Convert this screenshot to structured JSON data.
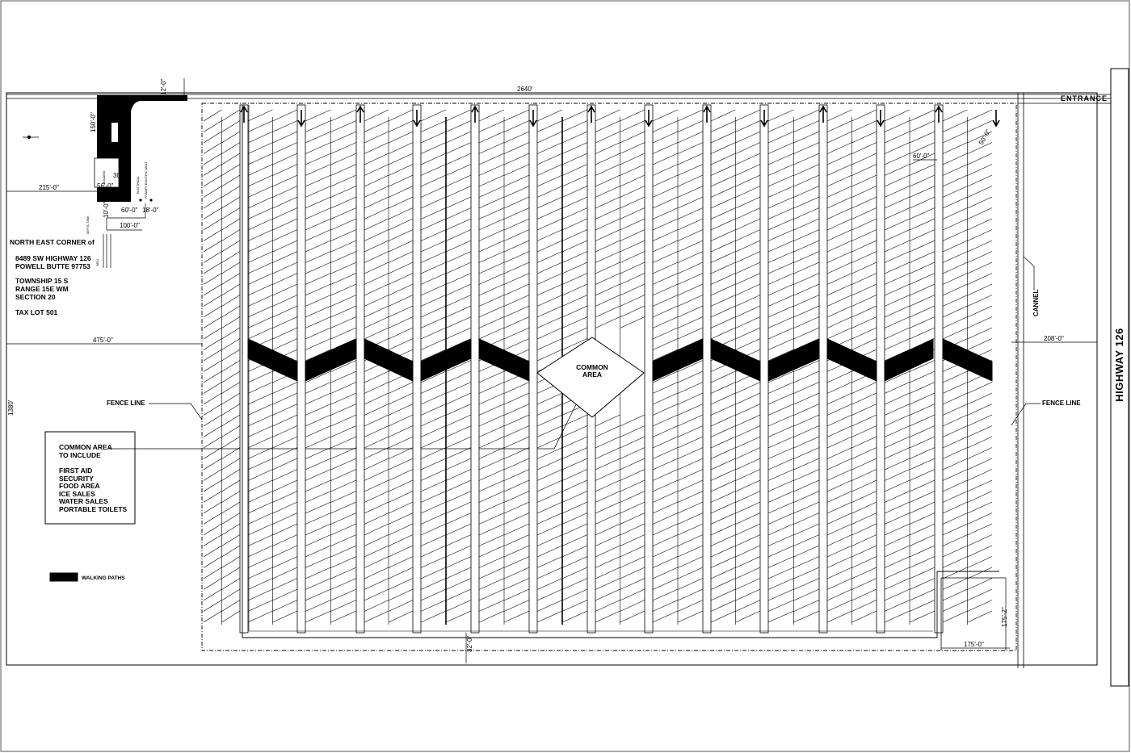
{
  "dimensions": {
    "top_length": "2640'",
    "road_width": "12'-0\"",
    "left_height": "1380'",
    "top_left_width": "215'-0\"",
    "mid_left_width": "475'-0\"",
    "right_width": "208'-0\"",
    "left_vertical": "150'-0\"",
    "building_width": "56'-0\"",
    "dim_30": "30'",
    "dim_60_1": "60'-0\"",
    "dim_18": "18'-0\"",
    "dim_10": "10'-0\"",
    "dim_100": "100'-0\"",
    "bottom_32": "32'-0\"",
    "lot_height": "175'-2\"",
    "lot_width": "175'-0\"",
    "dim_60_2": "60'-0\"",
    "dim_50": "50'-0\""
  },
  "labels": {
    "entrance": "ENTRANCE",
    "highway": "HIGHWAY 126",
    "cannel": "CANNEL",
    "fence_left": "FENCE LINE",
    "fence_right": "FENCE LINE",
    "common_area_1": "COMMON",
    "common_area_2": "AREA",
    "walking_paths": "WALKING PATHS",
    "building_small": "BUILDING",
    "utility_1": "ELECTRICAL",
    "utility_2": "PRIMARY ELECTRIC VAULT",
    "utility_3": "SEPTIC TANK",
    "utility_4": "WELL"
  },
  "site_info": [
    "NORTH EAST CORNER of",
    "8489 SW HIGHWAY 126",
    "POWELL BUTTE 97753",
    "TOWNSHIP 15 S",
    "RANGE 15E WM",
    "SECTION 20",
    "TAX LOT 501"
  ],
  "common_area_box": [
    "COMMON AREA",
    "TO INCLUDE",
    "FIRST AID",
    "SECURITY",
    "FOOD AREA",
    "ICE SALES",
    "WATER SALES",
    "PORTABLE TOILETS"
  ],
  "colors": {
    "ink": "#000000",
    "paper": "#ffffff"
  }
}
